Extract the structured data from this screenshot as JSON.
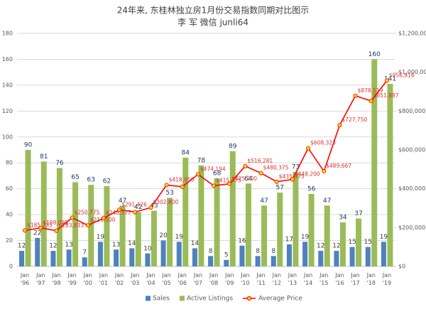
{
  "chart_data": {
    "type": "bar",
    "title": "24年来, 东桂林独立房1月份交易指数同期对比图示",
    "subtitle": "李 军   微信 junli64",
    "categories": [
      "Jan '96",
      "Jan '97",
      "Jan '98",
      "Jan '99",
      "Jan '00",
      "Jan '01",
      "Jan '02",
      "Jan '03",
      "Jan '04",
      "Jan '05",
      "Jan '06",
      "Jan '07",
      "Jan '08",
      "Jan '09",
      "Jan '10",
      "Jan '11",
      "Jan '12",
      "Jan '13",
      "Jan '14",
      "Jan '15",
      "Jan '16",
      "Jan '17",
      "Jan '18",
      "Jan '19"
    ],
    "series": [
      {
        "name": "Sales",
        "color": "#4f81bd",
        "values": [
          12,
          22,
          12,
          13,
          7,
          19,
          13,
          14,
          10,
          20,
          19,
          14,
          8,
          5,
          16,
          8,
          8,
          17,
          19,
          12,
          12,
          15,
          15,
          19
        ]
      },
      {
        "name": "Active Listings",
        "color": "#9bbb59",
        "values": [
          90,
          81,
          76,
          65,
          63,
          62,
          47,
          42,
          43,
          53,
          84,
          78,
          68,
          89,
          64,
          47,
          57,
          73,
          56,
          47,
          34,
          37,
          160,
          141
        ]
      },
      {
        "name": "Average Price",
        "color": "#ff0000",
        "marker_color": "#ffd700",
        "type": "line",
        "axis": "y2",
        "values": [
          185235,
          198095,
          183833,
          250775,
          211500,
          248377,
          291426,
          280000,
          302800,
          418950,
          410000,
          474194,
          415375,
          425200,
          516281,
          480375,
          435975,
          448200,
          608323,
          489667,
          727750,
          878519,
          851887,
          956816
        ],
        "value_labels": [
          "$185,235",
          "$198,095",
          "$183,833",
          "$250,775",
          "$211,500",
          "$248,377",
          "$291,426",
          null,
          "$302,800",
          "$418,950",
          null,
          "$474,194",
          "$415,375",
          "$425,200",
          "$516,281",
          "$480,375",
          "$435,975",
          "$448,200",
          "$608,323",
          "$489,667",
          "$727,750",
          "$878,519",
          "$851,887",
          "$956,816"
        ]
      }
    ],
    "ylim": [
      0,
      180
    ],
    "yticks": [
      0,
      20,
      40,
      60,
      80,
      100,
      120,
      140,
      160,
      180
    ],
    "y2lim": [
      0,
      1200000
    ],
    "y2ticks": [
      {
        "value": 0,
        "label": "$0"
      },
      {
        "value": 200000,
        "label": "$200,000"
      },
      {
        "value": 400000,
        "label": "$400,000"
      },
      {
        "value": 600000,
        "label": "$600,000"
      },
      {
        "value": 800000,
        "label": "$800,000"
      },
      {
        "value": 1000000,
        "label": "$1,000,000"
      },
      {
        "value": 1200000,
        "label": "$1,200,000"
      }
    ],
    "grid": true,
    "legend": "bottom"
  }
}
